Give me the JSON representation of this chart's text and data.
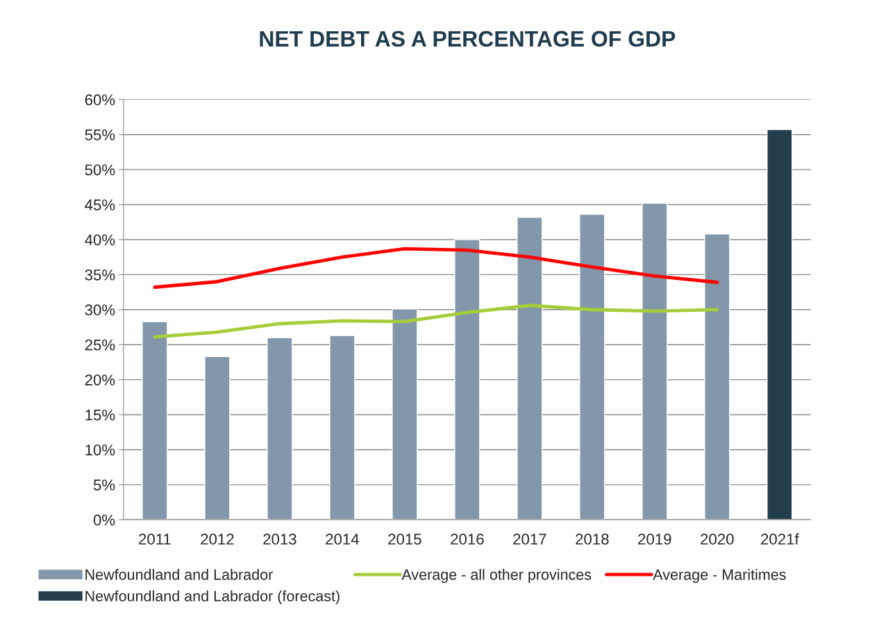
{
  "chart_data": {
    "type": "bar",
    "title": "NET DEBT AS A PERCENTAGE OF GDP",
    "categories": [
      "2011",
      "2012",
      "2013",
      "2014",
      "2015",
      "2016",
      "2017",
      "2018",
      "2019",
      "2020",
      "2021f"
    ],
    "series": [
      {
        "name": "Newfoundland and Labrador",
        "color": "#8496a9",
        "values": [
          28.3,
          23.3,
          26.0,
          26.3,
          30.1,
          40.0,
          43.2,
          43.6,
          45.2,
          40.8,
          null
        ]
      },
      {
        "name": "Average - all other provinces",
        "type": "line",
        "color": "#a5cd39",
        "values": [
          26.1,
          26.8,
          28.0,
          28.4,
          28.3,
          29.6,
          30.6,
          30.0,
          29.8,
          30.0,
          null
        ]
      },
      {
        "name": "Average - Maritimes",
        "type": "line",
        "color": "#ff0000",
        "values": [
          33.2,
          34.0,
          35.9,
          37.5,
          38.7,
          38.5,
          37.5,
          36.1,
          34.8,
          33.9,
          null
        ]
      },
      {
        "name": "Newfoundland and Labrador (forecast)",
        "color": "#233d4b",
        "values": [
          null,
          null,
          null,
          null,
          null,
          null,
          null,
          null,
          null,
          null,
          55.7
        ]
      }
    ],
    "ylim": [
      0,
      60
    ],
    "yticks": [
      {
        "value": 0,
        "label": "0%"
      },
      {
        "value": 5,
        "label": "5%"
      },
      {
        "value": 10,
        "label": "10%"
      },
      {
        "value": 15,
        "label": "15%"
      },
      {
        "value": 20,
        "label": "20%"
      },
      {
        "value": 25,
        "label": "25%"
      },
      {
        "value": 30,
        "label": "30%"
      },
      {
        "value": 35,
        "label": "35%"
      },
      {
        "value": 40,
        "label": "40%"
      },
      {
        "value": 45,
        "label": "45%"
      },
      {
        "value": 50,
        "label": "50%"
      },
      {
        "value": 55,
        "label": "55%"
      },
      {
        "value": 60,
        "label": "60%"
      }
    ],
    "grid": "y",
    "legend": "bottom"
  }
}
